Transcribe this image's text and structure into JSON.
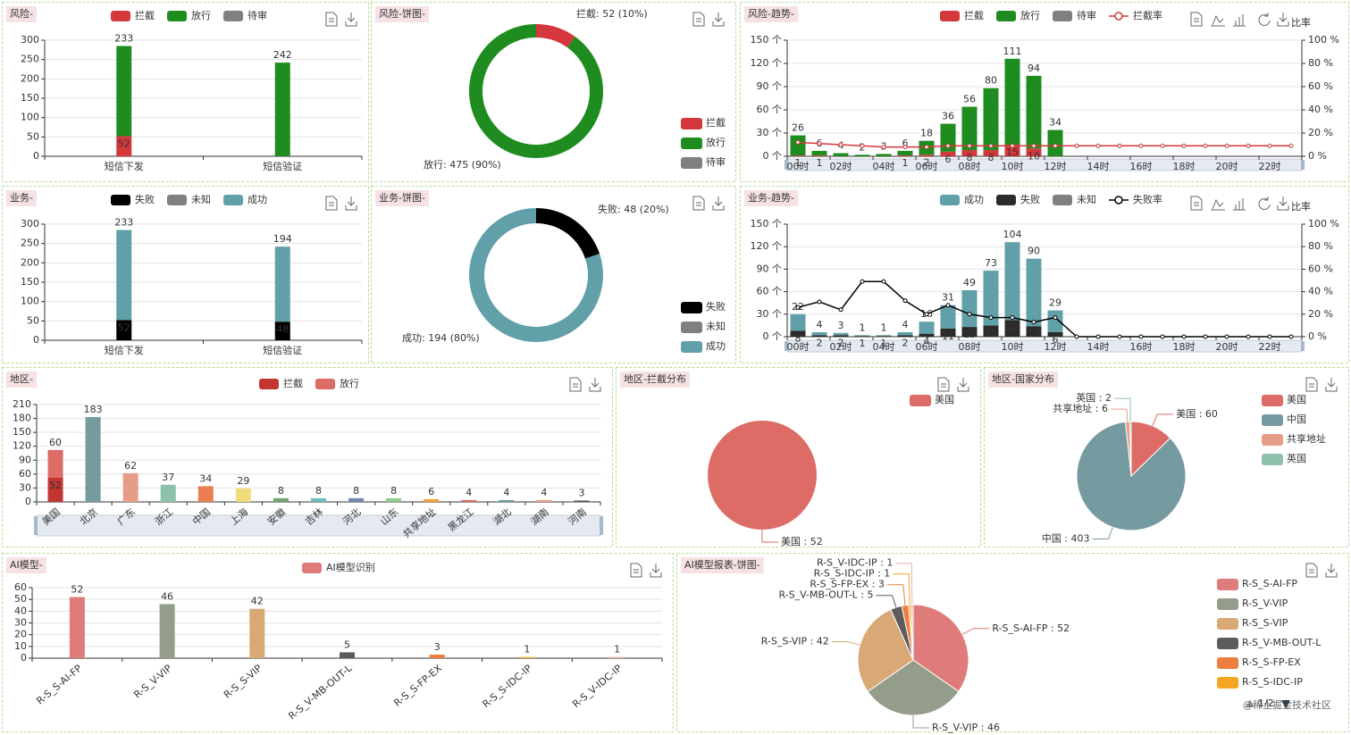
{
  "watermark": "@稀土掘金技术社区",
  "chart_data": [
    {
      "type": "bar",
      "title": "风险-",
      "categories": [
        "短信下发",
        "短信验证"
      ],
      "series": [
        {
          "name": "拦截",
          "color": "#d4373c",
          "values": [
            52,
            null
          ]
        },
        {
          "name": "放行",
          "color": "#1e8c1e",
          "values": [
            233,
            242
          ]
        },
        {
          "name": "待审",
          "color": "#808080",
          "values": [
            null,
            null
          ]
        }
      ],
      "ylim": [
        0,
        300
      ],
      "yticks": [
        0,
        50,
        100,
        150,
        200,
        250,
        300
      ],
      "grid": true
    },
    {
      "type": "pie",
      "title": "风险-饼图-",
      "donut": true,
      "categories": [
        "拦截",
        "放行",
        "待审"
      ],
      "colors": [
        "#d4373c",
        "#1e8c1e",
        "#808080"
      ],
      "values": [
        52,
        475,
        null
      ],
      "value_labels": [
        "拦截: 52 (10%)",
        "放行: 475 (90%)",
        null
      ]
    },
    {
      "type": "bar",
      "title": "风险-趋势-",
      "toolbar_label": "比率",
      "categories": [
        "00时",
        null,
        "02时",
        null,
        "04时",
        null,
        "06时",
        null,
        "08时",
        null,
        "10时",
        null,
        "12时",
        null,
        "14时",
        null,
        "16时",
        null,
        "18时",
        null,
        "20时",
        null,
        "22时",
        null
      ],
      "series": [
        {
          "name": "拦截",
          "color": "#d4373c",
          "values": [
            1,
            1,
            0,
            0,
            0,
            1,
            2,
            6,
            8,
            8,
            15,
            10,
            0,
            0,
            0,
            0,
            0,
            0,
            0,
            0,
            0,
            0,
            0,
            0
          ]
        },
        {
          "name": "放行",
          "color": "#1e8c1e",
          "values": [
            26,
            6,
            4,
            2,
            3,
            6,
            18,
            36,
            56,
            80,
            111,
            94,
            34,
            0,
            0,
            0,
            0,
            0,
            0,
            0,
            0,
            0,
            0,
            0
          ]
        },
        {
          "name": "待审",
          "color": "#808080",
          "values": [
            0,
            0,
            0,
            0,
            0,
            0,
            0,
            0,
            0,
            0,
            0,
            0,
            0,
            0,
            0,
            0,
            0,
            0,
            0,
            0,
            0,
            0,
            0,
            0
          ]
        },
        {
          "name": "拦截率",
          "type": "line",
          "axis": "y2",
          "color": "#d4373c",
          "values": [
            12,
            11,
            10,
            9,
            8,
            8,
            8,
            9,
            9,
            9,
            9,
            9,
            9,
            9,
            9,
            9,
            9,
            9,
            9,
            9,
            9,
            9,
            9,
            9
          ]
        }
      ],
      "ylim": [
        0,
        150
      ],
      "yticks": [
        {
          "value": 0,
          "label": "0 个"
        },
        {
          "value": 30,
          "label": "30 个"
        },
        {
          "value": 60,
          "label": "60 个"
        },
        {
          "value": 90,
          "label": "90 个"
        },
        {
          "value": 120,
          "label": "120 个"
        },
        {
          "value": 150,
          "label": "150 个"
        }
      ],
      "y2lim": [
        0,
        100
      ],
      "y2ticks": [
        {
          "value": 0,
          "label": "0 %"
        },
        {
          "value": 20,
          "label": "20 %"
        },
        {
          "value": 40,
          "label": "40 %"
        },
        {
          "value": 60,
          "label": "60 %"
        },
        {
          "value": 80,
          "label": "80 %"
        },
        {
          "value": 100,
          "label": "100 %"
        }
      ],
      "grid": true
    },
    {
      "type": "bar",
      "title": "业务-",
      "categories": [
        "短信下发",
        "短信验证"
      ],
      "series": [
        {
          "name": "失败",
          "color": "#000000",
          "values": [
            52,
            48
          ]
        },
        {
          "name": "未知",
          "color": "#808080",
          "values": [
            null,
            null
          ]
        },
        {
          "name": "成功",
          "color": "#61a0a8",
          "values": [
            233,
            194
          ]
        }
      ],
      "ylim": [
        0,
        300
      ],
      "yticks": [
        0,
        50,
        100,
        150,
        200,
        250,
        300
      ],
      "grid": true
    },
    {
      "type": "pie",
      "title": "业务-饼图-",
      "donut": true,
      "categories": [
        "失败",
        "未知",
        "成功"
      ],
      "colors": [
        "#000000",
        "#808080",
        "#61a0a8"
      ],
      "values": [
        48,
        null,
        194
      ],
      "value_labels": [
        "失败: 48 (20%)",
        null,
        "成功: 194 (80%)"
      ]
    },
    {
      "type": "bar",
      "title": "业务-趋势-",
      "toolbar_label": "比率",
      "categories": [
        "00时",
        null,
        "02时",
        null,
        "04时",
        null,
        "06时",
        null,
        "08时",
        null,
        "10时",
        null,
        "12时",
        null,
        "14时",
        null,
        "16时",
        null,
        "18时",
        null,
        "20时",
        null,
        "22时",
        null
      ],
      "series": [
        {
          "name": "成功",
          "color": "#61a0a8",
          "values": [
            22,
            4,
            3,
            1,
            1,
            4,
            16,
            31,
            49,
            73,
            104,
            90,
            29,
            0,
            0,
            0,
            0,
            0,
            0,
            0,
            0,
            0,
            0,
            0
          ]
        },
        {
          "name": "失败",
          "color": "#2b2b2b",
          "values": [
            8,
            2,
            2,
            1,
            1,
            2,
            4,
            11,
            13,
            15,
            22,
            14,
            6,
            0,
            0,
            0,
            0,
            0,
            0,
            0,
            0,
            0,
            0,
            0
          ]
        },
        {
          "name": "未知",
          "color": "#808080",
          "values": [
            0,
            0,
            0,
            0,
            0,
            0,
            0,
            0,
            0,
            0,
            0,
            0,
            0,
            0,
            0,
            0,
            0,
            0,
            0,
            0,
            0,
            0,
            0,
            0
          ]
        },
        {
          "name": "失败率",
          "type": "line",
          "axis": "y2",
          "color": "#000000",
          "values": [
            26,
            31,
            24,
            49,
            49,
            32,
            20,
            28,
            20,
            17,
            17,
            13,
            17,
            0,
            0,
            0,
            0,
            0,
            0,
            0,
            0,
            0,
            0,
            0
          ]
        }
      ],
      "ylim": [
        0,
        150
      ],
      "yticks": [
        {
          "value": 0,
          "label": "0 个"
        },
        {
          "value": 30,
          "label": "30 个"
        },
        {
          "value": 60,
          "label": "60 个"
        },
        {
          "value": 90,
          "label": "90 个"
        },
        {
          "value": 120,
          "label": "120 个"
        },
        {
          "value": 150,
          "label": "150 个"
        }
      ],
      "y2lim": [
        0,
        100
      ],
      "y2ticks": [
        {
          "value": 0,
          "label": "0 %"
        },
        {
          "value": 20,
          "label": "20 %"
        },
        {
          "value": 40,
          "label": "40 %"
        },
        {
          "value": 60,
          "label": "60 %"
        },
        {
          "value": 80,
          "label": "80 %"
        },
        {
          "value": 100,
          "label": "100 %"
        }
      ],
      "grid": true
    },
    {
      "type": "bar",
      "title": "地区-",
      "categories": [
        "美国",
        "北京",
        "广东",
        "浙江",
        "中国",
        "上海",
        "安徽",
        "吉林",
        "河北",
        "山东",
        "共享地址",
        "黑龙江",
        "湖北",
        "湖南",
        "河南"
      ],
      "series": [
        {
          "name": "拦截",
          "color": "#c23531",
          "values": [
            52,
            null,
            null,
            null,
            null,
            null,
            null,
            null,
            null,
            null,
            null,
            null,
            null,
            null,
            null
          ]
        },
        {
          "name": "放行",
          "color": "#dd6b66",
          "colors": [
            "#dd6b66",
            "#759aa0",
            "#e69d87",
            "#8dc1a9",
            "#ea7e53",
            "#eedd78",
            "#73a373",
            "#73b9bc",
            "#7289ab",
            "#91ca8c",
            "#f49f42",
            "#dd6b66",
            "#759aa0",
            "#e69d87",
            "#555555"
          ],
          "values": [
            60,
            183,
            62,
            37,
            34,
            29,
            8,
            8,
            8,
            8,
            6,
            4,
            4,
            4,
            3
          ]
        }
      ],
      "ylim": [
        0,
        210
      ],
      "yticks": [
        0,
        30,
        60,
        90,
        120,
        150,
        180,
        210
      ],
      "grid": true
    },
    {
      "type": "pie",
      "title": "地区-拦截分布",
      "categories": [
        "美国"
      ],
      "colors": [
        "#dd6b66"
      ],
      "values": [
        52
      ],
      "value_labels": [
        "美国 : 52"
      ]
    },
    {
      "type": "pie",
      "title": "地区-国家分布",
      "categories": [
        "美国",
        "中国",
        "共享地址",
        "英国"
      ],
      "colors": [
        "#dd6b66",
        "#759aa0",
        "#e69d87",
        "#8dc1a9"
      ],
      "values": [
        60,
        403,
        6,
        2
      ],
      "value_labels": [
        "美国 : 60",
        "中国 : 403",
        "共享地址 : 6",
        "英国 : 2"
      ]
    },
    {
      "type": "bar",
      "title": "AI模型-",
      "categories": [
        "R-S_S-AI-FP",
        "R-S_V-VIP",
        "R-S_S-VIP",
        "R-S_V-MB-OUT-L",
        "R-S_S-FP-EX",
        "R-S_S-IDC-IP",
        "R-S_V-IDC-IP"
      ],
      "series": [
        {
          "name": "AI模型识别",
          "color": "#e07b7b",
          "colors": [
            "#e07b7b",
            "#939d89",
            "#d9a877",
            "#5c5c5c",
            "#ec7e3f",
            "#f5a623",
            "#f0b0b0"
          ],
          "values": [
            52,
            46,
            42,
            5,
            3,
            1,
            1
          ]
        }
      ],
      "ylim": [
        0,
        60
      ],
      "yticks": [
        0,
        10,
        20,
        30,
        40,
        50,
        60
      ],
      "grid": true
    },
    {
      "type": "pie",
      "title": "AI模型报表-饼图-",
      "legend_page": "1/2",
      "categories": [
        "R-S_S-AI-FP",
        "R-S_V-VIP",
        "R-S_S-VIP",
        "R-S_V-MB-OUT-L",
        "R-S_S-FP-EX",
        "R-S_S-IDC-IP",
        "R-S_V-IDC-IP"
      ],
      "colors": [
        "#e07b7b",
        "#939d89",
        "#d9a877",
        "#5c5c5c",
        "#ec7e3f",
        "#f5a623",
        "#f0b0b0"
      ],
      "values": [
        52,
        46,
        42,
        5,
        3,
        1,
        1
      ],
      "value_labels": [
        "R-S_S-AI-FP : 52",
        "R-S_V-VIP : 46",
        "R-S_S-VIP : 42",
        "R-S_V-MB-OUT-L : 5",
        "R-S_S-FP-EX : 3",
        "R-S_S-IDC-IP : 1",
        "R-S_V-IDC-IP : 1"
      ]
    }
  ]
}
